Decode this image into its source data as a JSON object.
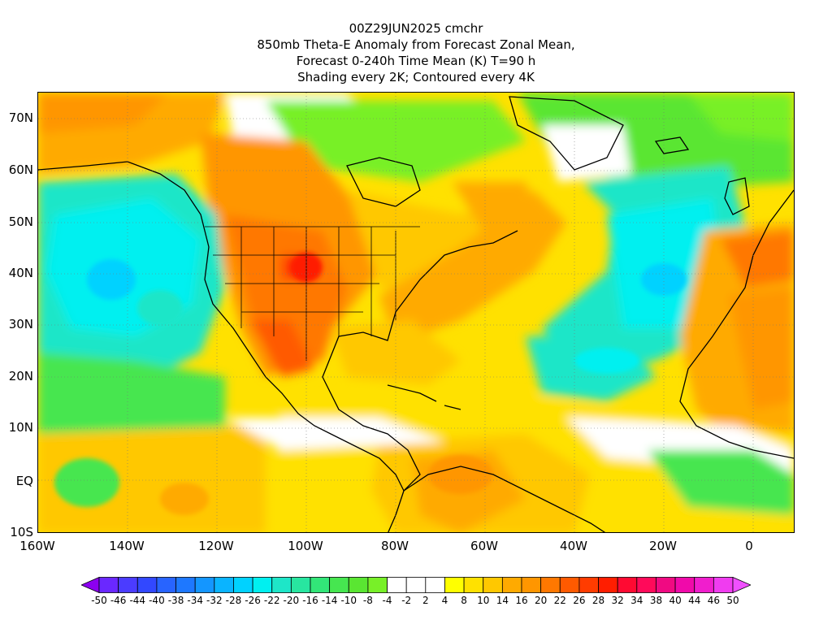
{
  "header": {
    "line1": "00Z29JUN2025 cmchr",
    "line2": "850mb Theta-E Anomaly from Forecast Zonal Mean,",
    "line3": "Forecast 0-240h Time Mean (K) T=90 h",
    "line4": "Shading every 2K; Contoured every 4K"
  },
  "axes": {
    "lat_labels": [
      "70N",
      "60N",
      "50N",
      "40N",
      "30N",
      "20N",
      "10N",
      "EQ",
      "10S"
    ],
    "lon_labels": [
      "160W",
      "140W",
      "120W",
      "100W",
      "80W",
      "60W",
      "40W",
      "20W",
      "0"
    ]
  },
  "colorbar": {
    "labels": [
      "-50",
      "-46",
      "-44",
      "-40",
      "-38",
      "-34",
      "-32",
      "-28",
      "-26",
      "-22",
      "-20",
      "-16",
      "-14",
      "-10",
      "-8",
      "-4",
      "-2",
      "2",
      "4",
      "8",
      "10",
      "14",
      "16",
      "20",
      "22",
      "26",
      "28",
      "32",
      "34",
      "38",
      "40",
      "44",
      "46",
      "50"
    ],
    "colors": [
      "#8c00f0",
      "#6a28ff",
      "#4b3cff",
      "#3248ff",
      "#2864ff",
      "#1e78ff",
      "#1496ff",
      "#0ab4ff",
      "#00d2ff",
      "#00f0f0",
      "#1ee6c8",
      "#28e6a0",
      "#32e678",
      "#46e650",
      "#5ae632",
      "#78f028",
      "#ffffff",
      "#ffffff",
      "#ffffff",
      "#ffff00",
      "#ffe100",
      "#ffc800",
      "#ffaa00",
      "#ff9600",
      "#ff7800",
      "#ff5a00",
      "#ff3c00",
      "#ff1e00",
      "#ff0a32",
      "#ff0a5a",
      "#f00a82",
      "#f00aaa",
      "#f01ecd",
      "#f03cf0",
      "#f050ff"
    ]
  }
}
